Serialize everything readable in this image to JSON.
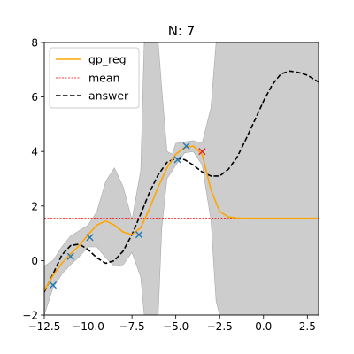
{
  "chart_data": {
    "type": "line",
    "title": "N: 7",
    "xlabel": "",
    "ylabel": "",
    "xlim": [
      -12.5,
      3.14
    ],
    "ylim": [
      -2,
      8
    ],
    "xticks": [
      -12.5,
      -10.0,
      -7.5,
      -5.0,
      -2.5,
      0.0,
      2.5
    ],
    "xtick_labels": [
      "−12.5",
      "−10.0",
      "−7.5",
      "−5.0",
      "−2.5",
      "0.0",
      "2.5"
    ],
    "yticks": [
      -2,
      0,
      2,
      4,
      6,
      8
    ],
    "ytick_labels": [
      "−2",
      "0",
      "2",
      "4",
      "6",
      "8"
    ],
    "grid": false,
    "legend_position": "top-left",
    "legend": [
      {
        "label": "gp_reg",
        "style": "solid",
        "color": "#ffa500"
      },
      {
        "label": "mean",
        "style": "thin-dashed",
        "color": "#ff0000"
      },
      {
        "label": "answer",
        "style": "dashed",
        "color": "#000000"
      }
    ],
    "mean_value": 1.55,
    "series": [
      {
        "name": "answer",
        "color": "#000000",
        "x": [
          -12.5,
          -12.0,
          -11.5,
          -11.0,
          -10.5,
          -10.0,
          -9.5,
          -9.0,
          -8.5,
          -8.0,
          -7.5,
          -7.0,
          -6.5,
          -6.0,
          -5.5,
          -5.0,
          -4.5,
          -4.0,
          -3.5,
          -3.0,
          -2.5,
          -2.0,
          -1.5,
          -1.0,
          -0.5,
          0.0,
          0.5,
          1.0,
          1.5,
          2.0,
          2.5,
          3.14
        ],
        "y": [
          -1.15,
          -0.5,
          0.2,
          0.55,
          0.6,
          0.4,
          0.1,
          -0.1,
          0.0,
          0.35,
          0.95,
          1.7,
          2.5,
          3.15,
          3.6,
          3.75,
          3.7,
          3.5,
          3.25,
          3.1,
          3.1,
          3.35,
          3.8,
          4.45,
          5.15,
          5.85,
          6.45,
          6.85,
          6.95,
          6.9,
          6.8,
          6.55
        ]
      },
      {
        "name": "gp_reg",
        "color": "#ffa500",
        "x": [
          -12.5,
          -12.0,
          -11.5,
          -11.0,
          -10.5,
          -10.0,
          -9.5,
          -9.0,
          -8.5,
          -8.0,
          -7.5,
          -7.0,
          -6.5,
          -6.0,
          -5.5,
          -5.0,
          -4.5,
          -4.0,
          -3.5,
          -3.0,
          -2.5,
          -2.0,
          -1.5,
          -1.0,
          0.0,
          1.0,
          2.0,
          3.14
        ],
        "y": [
          -1.1,
          -0.55,
          -0.1,
          0.25,
          0.55,
          0.95,
          1.3,
          1.45,
          1.3,
          1.05,
          0.95,
          1.2,
          1.9,
          2.7,
          3.4,
          3.9,
          4.15,
          4.2,
          3.9,
          2.6,
          1.8,
          1.6,
          1.56,
          1.55,
          1.55,
          1.55,
          1.55,
          1.55
        ]
      }
    ],
    "confidence_band": {
      "x": [
        -12.5,
        -12.0,
        -11.5,
        -11.0,
        -10.5,
        -10.0,
        -9.5,
        -9.0,
        -8.5,
        -8.0,
        -7.5,
        -7.0,
        -6.8,
        -6.5,
        -6.0,
        -5.8,
        -5.5,
        -5.2,
        -5.0,
        -4.5,
        -4.0,
        -3.5,
        -3.0,
        -2.7,
        -2.5,
        -2.0,
        0.0,
        3.14
      ],
      "lower": [
        -2.0,
        -1.0,
        -0.5,
        -0.15,
        0.15,
        0.5,
        0.5,
        0.1,
        -0.2,
        -0.15,
        0.3,
        -0.6,
        -2.0,
        -2.0,
        -2.0,
        1.2,
        3.0,
        3.3,
        3.5,
        3.95,
        4.0,
        3.5,
        1.5,
        -1.5,
        -2.0,
        -2.0,
        -2.0,
        -2.0
      ],
      "upper": [
        -0.2,
        0.0,
        0.5,
        0.9,
        1.1,
        1.3,
        1.8,
        2.9,
        3.4,
        2.7,
        1.5,
        3.3,
        8.0,
        8.0,
        8.0,
        6.3,
        4.0,
        3.9,
        4.3,
        4.35,
        4.4,
        4.3,
        5.6,
        8.0,
        8.0,
        8.0,
        8.0,
        8.0
      ]
    },
    "observations": [
      {
        "x": -12.0,
        "y": -0.9,
        "color": "#1f77b4"
      },
      {
        "x": -11.0,
        "y": 0.15,
        "color": "#1f77b4"
      },
      {
        "x": -9.9,
        "y": 0.85,
        "color": "#1f77b4"
      },
      {
        "x": -7.1,
        "y": 0.95,
        "color": "#1f77b4"
      },
      {
        "x": -4.9,
        "y": 3.7,
        "color": "#1f77b4"
      },
      {
        "x": -4.4,
        "y": 4.2,
        "color": "#1f77b4"
      },
      {
        "x": -3.5,
        "y": 4.0,
        "color": "#d62728"
      }
    ]
  }
}
